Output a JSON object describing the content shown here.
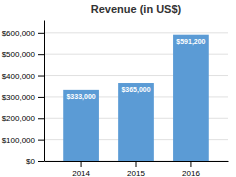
{
  "chart_data": {
    "type": "bar",
    "title": "Revenue (in US$)",
    "categories": [
      "2014",
      "2015",
      "2016"
    ],
    "values": [
      333000,
      365000,
      591200
    ],
    "value_labels": [
      "$333,000",
      "$365,000",
      "$591,200"
    ],
    "data_labels": true,
    "color": "#5B9BD5",
    "ylim": [
      0,
      660000
    ],
    "yticks": [
      {
        "value": 0,
        "label": "$0"
      },
      {
        "value": 100000,
        "label": "$100,000"
      },
      {
        "value": 200000,
        "label": "$200,000"
      },
      {
        "value": 300000,
        "label": "$300,000"
      },
      {
        "value": 400000,
        "label": "$400,000"
      },
      {
        "value": 500000,
        "label": "$500,000"
      },
      {
        "value": 600000,
        "label": "$600,000"
      }
    ],
    "grid": true
  }
}
